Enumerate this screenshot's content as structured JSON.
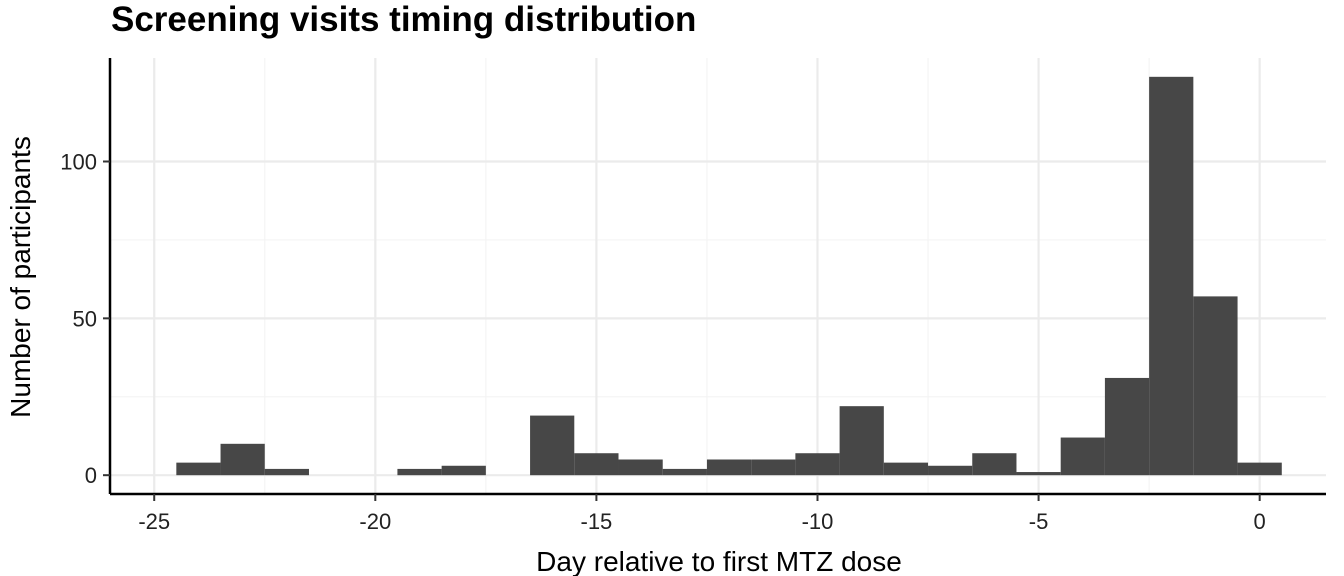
{
  "chart_data": {
    "type": "bar",
    "title": "Screening visits timing distribution",
    "xlabel": "Day relative to first MTZ dose",
    "ylabel": "Number of participants",
    "xlim": [
      -26,
      1.5
    ],
    "ylim": [
      -6,
      133
    ],
    "x_ticks": [
      -25,
      -20,
      -15,
      -10,
      -5,
      0
    ],
    "y_ticks": [
      0,
      50,
      100
    ],
    "grid": true,
    "bar_color": "#474747",
    "bins": [
      {
        "x0": -24.5,
        "x1": -23.5,
        "value": 4
      },
      {
        "x0": -23.5,
        "x1": -22.5,
        "value": 10
      },
      {
        "x0": -22.5,
        "x1": -21.5,
        "value": 2
      },
      {
        "x0": -21.5,
        "x1": -20.5,
        "value": 0
      },
      {
        "x0": -20.5,
        "x1": -19.5,
        "value": 0
      },
      {
        "x0": -19.5,
        "x1": -18.5,
        "value": 2
      },
      {
        "x0": -18.5,
        "x1": -17.5,
        "value": 3
      },
      {
        "x0": -17.5,
        "x1": -16.5,
        "value": 0
      },
      {
        "x0": -16.5,
        "x1": -15.5,
        "value": 19
      },
      {
        "x0": -15.5,
        "x1": -14.5,
        "value": 7
      },
      {
        "x0": -14.5,
        "x1": -13.5,
        "value": 5
      },
      {
        "x0": -13.5,
        "x1": -12.5,
        "value": 2
      },
      {
        "x0": -12.5,
        "x1": -11.5,
        "value": 5
      },
      {
        "x0": -11.5,
        "x1": -10.5,
        "value": 5
      },
      {
        "x0": -10.5,
        "x1": -9.5,
        "value": 7
      },
      {
        "x0": -9.5,
        "x1": -8.5,
        "value": 22
      },
      {
        "x0": -8.5,
        "x1": -7.5,
        "value": 4
      },
      {
        "x0": -7.5,
        "x1": -6.5,
        "value": 3
      },
      {
        "x0": -6.5,
        "x1": -5.5,
        "value": 7
      },
      {
        "x0": -5.5,
        "x1": -4.5,
        "value": 1
      },
      {
        "x0": -4.5,
        "x1": -3.5,
        "value": 12
      },
      {
        "x0": -3.5,
        "x1": -2.5,
        "value": 31
      },
      {
        "x0": -2.5,
        "x1": -1.5,
        "value": 127
      },
      {
        "x0": -1.5,
        "x1": -0.5,
        "value": 57
      },
      {
        "x0": -0.5,
        "x1": 0.5,
        "value": 4
      }
    ]
  }
}
